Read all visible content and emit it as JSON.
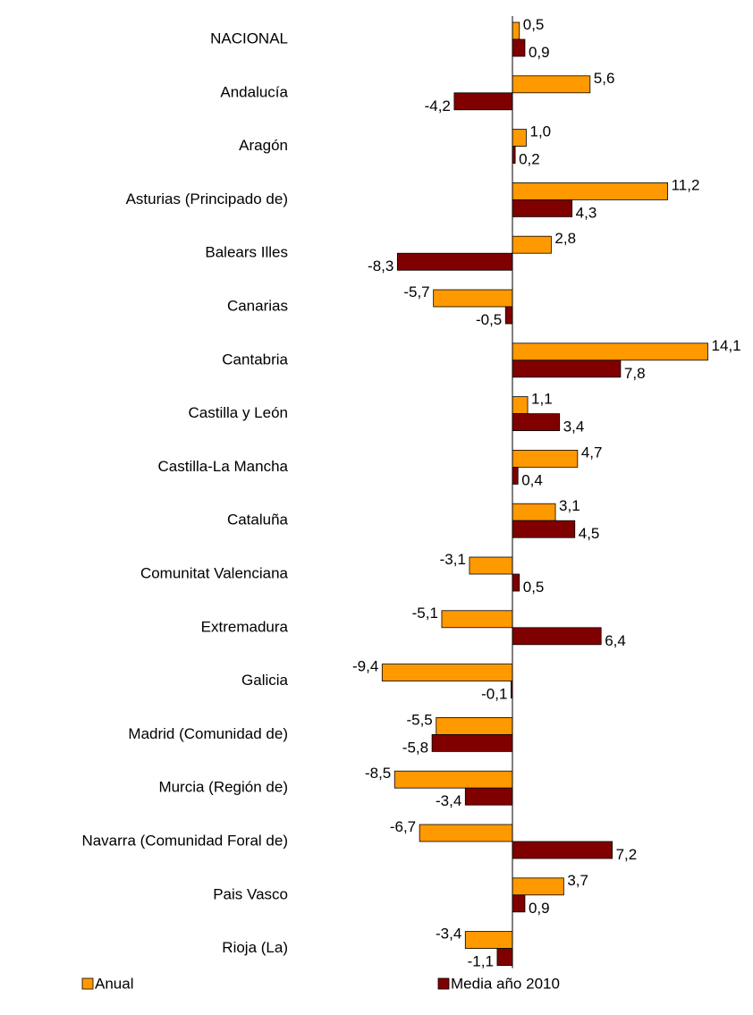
{
  "chart_data": {
    "type": "hbar",
    "categories": [
      "NACIONAL",
      "Andalucía",
      "Aragón",
      "Asturias (Principado de)",
      "Balears Illes",
      "Canarias",
      "Cantabria",
      "Castilla y León",
      "Castilla-La Mancha",
      "Cataluña",
      "Comunitat Valenciana",
      "Extremadura",
      "Galicia",
      "Madrid (Comunidad de)",
      "Murcia (Región de)",
      "Navarra (Comunidad Foral de)",
      "Pais Vasco",
      "Rioja (La)"
    ],
    "series": [
      {
        "name": "Anual",
        "color": "#ff9900",
        "values": [
          0.5,
          5.6,
          1.0,
          11.2,
          2.8,
          -5.7,
          14.1,
          1.1,
          4.7,
          3.1,
          -3.1,
          -5.1,
          -9.4,
          -5.5,
          -8.5,
          -6.7,
          3.7,
          -3.4
        ],
        "value_labels": [
          "0,5",
          "5,6",
          "1,0",
          "11,2",
          "2,8",
          "-5,7",
          "14,1",
          "1,1",
          "4,7",
          "3,1",
          "-3,1",
          "-5,1",
          "-9,4",
          "-5,5",
          "-8,5",
          "-6,7",
          "3,7",
          "-3,4"
        ]
      },
      {
        "name": "Media año 2010",
        "color": "#800000",
        "values": [
          0.9,
          -4.2,
          0.2,
          4.3,
          -8.3,
          -0.5,
          7.8,
          3.4,
          0.4,
          4.5,
          0.5,
          6.4,
          -0.1,
          -5.8,
          -3.4,
          7.2,
          0.9,
          -1.1
        ],
        "value_labels": [
          "0,9",
          "-4,2",
          "0,2",
          "4,3",
          "-8,3",
          "-0,5",
          "7,8",
          "3,4",
          "0,4",
          "4,5",
          "0,5",
          "6,4",
          "-0,1",
          "-5,8",
          "-3,4",
          "7,2",
          "0,9",
          "-1,1"
        ]
      }
    ]
  }
}
